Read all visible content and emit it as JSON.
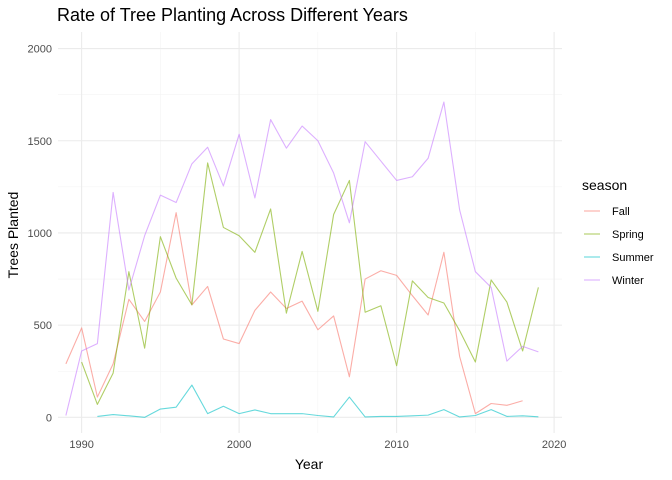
{
  "chart_data": {
    "type": "line",
    "title": "Rate of Tree Planting Across Different Years",
    "xlabel": "Year",
    "ylabel": "Trees Planted",
    "xlim": [
      1988.5,
      2020.5
    ],
    "ylim": [
      -85,
      2090
    ],
    "x_ticks": [
      1990,
      2000,
      2010,
      2020
    ],
    "y_ticks": [
      0,
      500,
      1000,
      1500,
      2000
    ],
    "grid": true,
    "legend": {
      "title": "season",
      "position": "right"
    },
    "series": [
      {
        "name": "Fall",
        "color": "#F8766D",
        "points": [
          [
            1989,
            290
          ],
          [
            1990,
            485
          ],
          [
            1991,
            110
          ],
          [
            1992,
            290
          ],
          [
            1993,
            640
          ],
          [
            1994,
            520
          ],
          [
            1995,
            680
          ],
          [
            1996,
            1110
          ],
          [
            1997,
            610
          ],
          [
            1998,
            710
          ],
          [
            1999,
            425
          ],
          [
            2000,
            400
          ],
          [
            2001,
            580
          ],
          [
            2002,
            680
          ],
          [
            2003,
            590
          ],
          [
            2004,
            630
          ],
          [
            2005,
            475
          ],
          [
            2006,
            550
          ],
          [
            2007,
            220
          ],
          [
            2008,
            750
          ],
          [
            2009,
            795
          ],
          [
            2010,
            770
          ],
          [
            2011,
            660
          ],
          [
            2012,
            555
          ],
          [
            2013,
            895
          ],
          [
            2014,
            330
          ],
          [
            2015,
            20
          ],
          [
            2016,
            75
          ],
          [
            2017,
            65
          ],
          [
            2018,
            90
          ]
        ]
      },
      {
        "name": "Spring",
        "color": "#7CAE00",
        "points": [
          [
            1990,
            300
          ],
          [
            1991,
            70
          ],
          [
            1992,
            240
          ],
          [
            1993,
            790
          ],
          [
            1994,
            375
          ],
          [
            1995,
            980
          ],
          [
            1996,
            755
          ],
          [
            1997,
            610
          ],
          [
            1998,
            1380
          ],
          [
            1999,
            1030
          ],
          [
            2000,
            985
          ],
          [
            2001,
            895
          ],
          [
            2002,
            1130
          ],
          [
            2003,
            565
          ],
          [
            2004,
            900
          ],
          [
            2005,
            575
          ],
          [
            2006,
            1100
          ],
          [
            2007,
            1285
          ],
          [
            2008,
            570
          ],
          [
            2009,
            605
          ],
          [
            2010,
            280
          ],
          [
            2011,
            740
          ],
          [
            2012,
            650
          ],
          [
            2013,
            620
          ],
          [
            2014,
            470
          ],
          [
            2015,
            300
          ],
          [
            2016,
            745
          ],
          [
            2017,
            625
          ],
          [
            2018,
            360
          ],
          [
            2019,
            705
          ]
        ]
      },
      {
        "name": "Summer",
        "color": "#00BFC4",
        "points": [
          [
            1991,
            5
          ],
          [
            1992,
            15
          ],
          [
            1993,
            8
          ],
          [
            1994,
            0
          ],
          [
            1995,
            45
          ],
          [
            1996,
            55
          ],
          [
            1997,
            175
          ],
          [
            1998,
            20
          ],
          [
            1999,
            60
          ],
          [
            2000,
            20
          ],
          [
            2001,
            40
          ],
          [
            2002,
            20
          ],
          [
            2003,
            20
          ],
          [
            2004,
            20
          ],
          [
            2005,
            10
          ],
          [
            2006,
            2
          ],
          [
            2007,
            110
          ],
          [
            2008,
            2
          ],
          [
            2009,
            5
          ],
          [
            2010,
            5
          ],
          [
            2011,
            8
          ],
          [
            2012,
            12
          ],
          [
            2013,
            42
          ],
          [
            2014,
            2
          ],
          [
            2015,
            10
          ],
          [
            2016,
            42
          ],
          [
            2017,
            5
          ],
          [
            2018,
            8
          ],
          [
            2019,
            3
          ]
        ]
      },
      {
        "name": "Winter",
        "color": "#C77CFF",
        "points": [
          [
            1989,
            10
          ],
          [
            1990,
            360
          ],
          [
            1991,
            400
          ],
          [
            1992,
            1220
          ],
          [
            1993,
            690
          ],
          [
            1994,
            985
          ],
          [
            1995,
            1205
          ],
          [
            1996,
            1165
          ],
          [
            1997,
            1375
          ],
          [
            1998,
            1465
          ],
          [
            1999,
            1255
          ],
          [
            2000,
            1535
          ],
          [
            2001,
            1190
          ],
          [
            2002,
            1615
          ],
          [
            2003,
            1460
          ],
          [
            2004,
            1580
          ],
          [
            2005,
            1500
          ],
          [
            2006,
            1325
          ],
          [
            2007,
            1055
          ],
          [
            2008,
            1495
          ],
          [
            2009,
            1390
          ],
          [
            2010,
            1285
          ],
          [
            2011,
            1305
          ],
          [
            2012,
            1405
          ],
          [
            2013,
            1710
          ],
          [
            2014,
            1125
          ],
          [
            2015,
            790
          ],
          [
            2016,
            705
          ],
          [
            2017,
            305
          ],
          [
            2018,
            385
          ],
          [
            2019,
            355
          ]
        ]
      }
    ]
  }
}
